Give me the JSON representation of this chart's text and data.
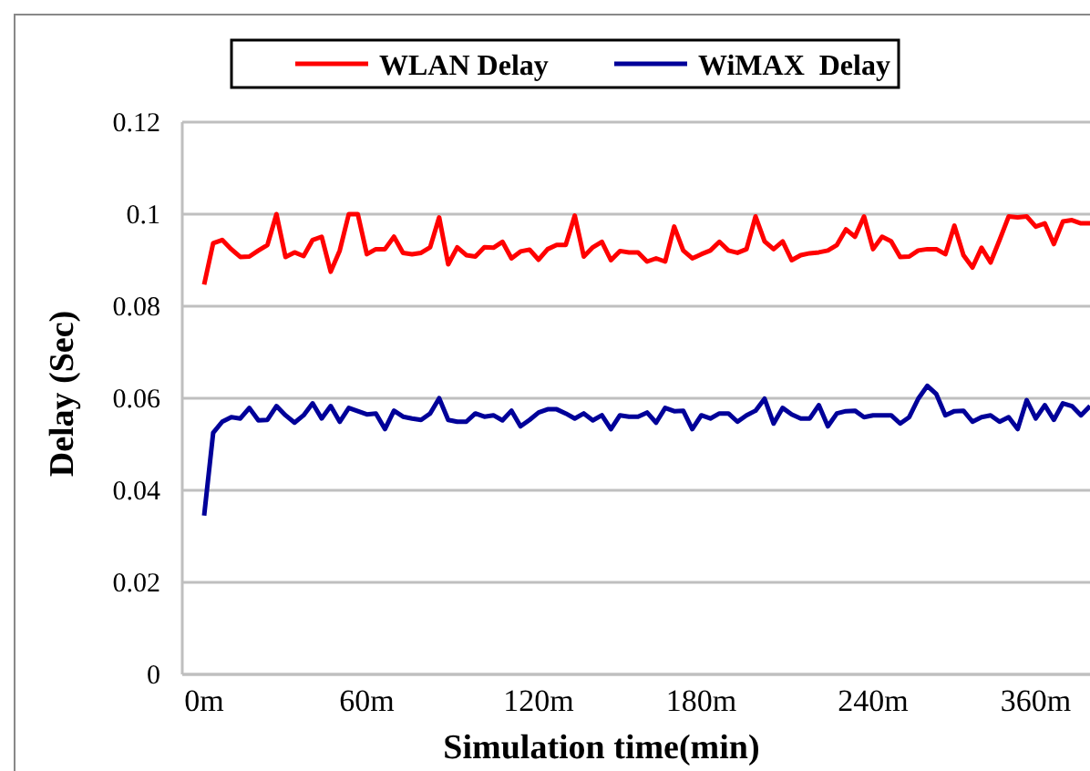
{
  "chart_data": {
    "type": "line",
    "xlabel": "Simulation time(min)",
    "ylabel": "Delay (Sec)",
    "categories": [
      "0m",
      null,
      null,
      null,
      null,
      null,
      null,
      null,
      null,
      null,
      null,
      null,
      null,
      null,
      null,
      null,
      null,
      null,
      "60m",
      null,
      null,
      null,
      null,
      null,
      null,
      null,
      null,
      null,
      null,
      null,
      null,
      null,
      null,
      null,
      null,
      null,
      null,
      "120m",
      null,
      null,
      null,
      null,
      null,
      null,
      null,
      null,
      null,
      null,
      null,
      null,
      null,
      null,
      null,
      null,
      null,
      "180m",
      null,
      null,
      null,
      null,
      null,
      null,
      null,
      null,
      null,
      null,
      null,
      null,
      null,
      null,
      null,
      null,
      null,
      null,
      "240m",
      null,
      null,
      null,
      null,
      null,
      null,
      null,
      null,
      null,
      null,
      null,
      null,
      null,
      null,
      null,
      null,
      null,
      "360m",
      null,
      null,
      null,
      null,
      null,
      null
    ],
    "ylim": [
      0,
      0.12
    ],
    "yticks": [
      0,
      0.02,
      0.04,
      0.06,
      0.08,
      0.1,
      0.12
    ],
    "grid": "y",
    "legend": "top",
    "marker": "none",
    "line_style": "solid",
    "series": [
      {
        "name": "WLAN Delay",
        "color": "#ff0000",
        "values": [
          0.0847,
          0.0937,
          0.0944,
          0.0924,
          0.0907,
          0.0908,
          0.0921,
          0.0933,
          0.1,
          0.0907,
          0.0917,
          0.0909,
          0.0944,
          0.0951,
          0.0875,
          0.0921,
          0.1,
          0.1,
          0.0913,
          0.0924,
          0.0924,
          0.0951,
          0.0916,
          0.0913,
          0.0916,
          0.0928,
          0.0993,
          0.0891,
          0.0928,
          0.0911,
          0.0908,
          0.0928,
          0.0927,
          0.094,
          0.0904,
          0.0919,
          0.0923,
          0.0901,
          0.0924,
          0.0933,
          0.0933,
          0.0997,
          0.0908,
          0.0928,
          0.094,
          0.09,
          0.092,
          0.0917,
          0.0917,
          0.0897,
          0.0904,
          0.0897,
          0.0973,
          0.0921,
          0.0904,
          0.0913,
          0.0921,
          0.094,
          0.0921,
          0.0916,
          0.0924,
          0.0995,
          0.0941,
          0.0924,
          0.0941,
          0.09,
          0.0911,
          0.0915,
          0.0917,
          0.0921,
          0.0933,
          0.0967,
          0.0951,
          0.0995,
          0.0924,
          0.0951,
          0.0941,
          0.0907,
          0.0908,
          0.0921,
          0.0924,
          0.0924,
          0.0913,
          0.0975,
          0.0911,
          0.0884,
          0.0927,
          0.0895,
          0.0944,
          0.0995,
          0.0993,
          0.0995,
          0.0973,
          0.098,
          0.0935,
          0.0984,
          0.0987,
          0.098,
          0.098
        ]
      },
      {
        "name": "WiMAX  Delay",
        "color": "#000099",
        "values": [
          0.0345,
          0.0525,
          0.0549,
          0.0559,
          0.0556,
          0.0579,
          0.0552,
          0.0553,
          0.0583,
          0.0563,
          0.0547,
          0.0563,
          0.0589,
          0.0556,
          0.0583,
          0.0549,
          0.0579,
          0.0572,
          0.0565,
          0.0567,
          0.0533,
          0.0573,
          0.056,
          0.0556,
          0.0553,
          0.0567,
          0.06,
          0.0553,
          0.0549,
          0.0549,
          0.0567,
          0.056,
          0.0563,
          0.0552,
          0.0573,
          0.0539,
          0.0553,
          0.0569,
          0.0576,
          0.0576,
          0.0567,
          0.0556,
          0.0567,
          0.0552,
          0.0563,
          0.0533,
          0.0563,
          0.056,
          0.056,
          0.0569,
          0.0547,
          0.0579,
          0.0572,
          0.0573,
          0.0533,
          0.0563,
          0.0556,
          0.0567,
          0.0567,
          0.0549,
          0.0563,
          0.0573,
          0.0599,
          0.0545,
          0.0579,
          0.0565,
          0.0556,
          0.0556,
          0.0585,
          0.0539,
          0.0567,
          0.0572,
          0.0573,
          0.0559,
          0.0563,
          0.0563,
          0.0563,
          0.0545,
          0.0559,
          0.0599,
          0.0627,
          0.0609,
          0.0563,
          0.0572,
          0.0573,
          0.0549,
          0.0559,
          0.0563,
          0.0549,
          0.0559,
          0.0533,
          0.0596,
          0.0556,
          0.0585,
          0.0553,
          0.0589,
          0.0583,
          0.0563,
          0.0583
        ]
      }
    ]
  }
}
